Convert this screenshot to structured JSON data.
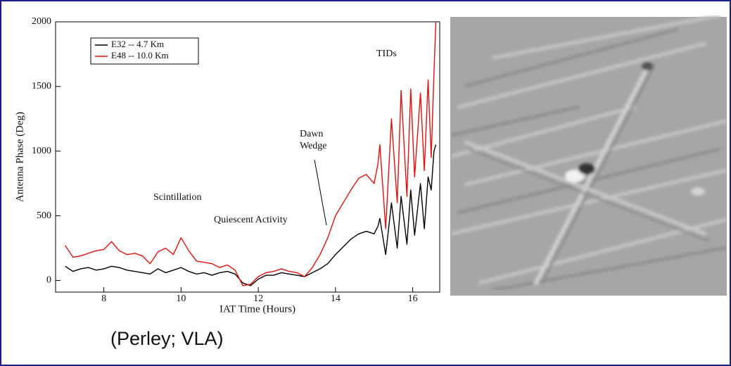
{
  "chart_data": {
    "type": "line",
    "x_label": "IAT Time (Hours)",
    "y_label": "Antenna Phase (Deg)",
    "x": [
      7.0,
      7.2,
      7.4,
      7.6,
      7.8,
      8.0,
      8.2,
      8.4,
      8.6,
      8.8,
      9.0,
      9.2,
      9.4,
      9.6,
      9.8,
      10.0,
      10.2,
      10.4,
      10.6,
      10.8,
      11.0,
      11.2,
      11.4,
      11.6,
      11.8,
      12.0,
      12.2,
      12.4,
      12.6,
      12.8,
      13.0,
      13.2,
      13.4,
      13.6,
      13.8,
      14.0,
      14.2,
      14.4,
      14.6,
      14.8,
      15.0,
      15.1,
      15.15,
      15.3,
      15.45,
      15.6,
      15.7,
      15.85,
      15.95,
      16.05,
      16.2,
      16.3,
      16.4,
      16.48,
      16.55,
      16.6
    ],
    "series": [
      {
        "name": "E32 -- 4.7 Km",
        "color": "#000000",
        "values": [
          110,
          70,
          90,
          100,
          80,
          90,
          110,
          100,
          80,
          70,
          60,
          50,
          90,
          60,
          80,
          100,
          70,
          50,
          60,
          40,
          60,
          70,
          50,
          -20,
          -40,
          10,
          40,
          40,
          60,
          50,
          40,
          30,
          60,
          90,
          130,
          200,
          260,
          320,
          360,
          380,
          360,
          420,
          480,
          200,
          600,
          250,
          650,
          280,
          700,
          350,
          750,
          400,
          800,
          700,
          1000,
          1050
        ]
      },
      {
        "name": "E48 -- 10.0 Km",
        "color": "#e01010",
        "values": [
          270,
          180,
          190,
          210,
          230,
          240,
          300,
          230,
          200,
          210,
          190,
          130,
          220,
          250,
          200,
          330,
          230,
          150,
          140,
          130,
          100,
          120,
          80,
          -40,
          -30,
          30,
          60,
          70,
          90,
          70,
          60,
          30,
          100,
          200,
          330,
          500,
          600,
          700,
          790,
          820,
          750,
          900,
          1050,
          400,
          1250,
          600,
          1470,
          650,
          1480,
          800,
          1450,
          850,
          1550,
          950,
          1600,
          2000
        ]
      }
    ],
    "annotations": [
      "Scintillation",
      "Quiescent Activity",
      "Dawn Wedge",
      "TIDs"
    ],
    "xlim": [
      6.75,
      16.7
    ],
    "ylim": [
      -90,
      2000
    ],
    "xticks": [
      8,
      10,
      12,
      14,
      16
    ],
    "yticks": [
      0,
      500,
      1000,
      1500,
      2000
    ],
    "legend": "upper left"
  },
  "caption": "(Perley; VLA)"
}
